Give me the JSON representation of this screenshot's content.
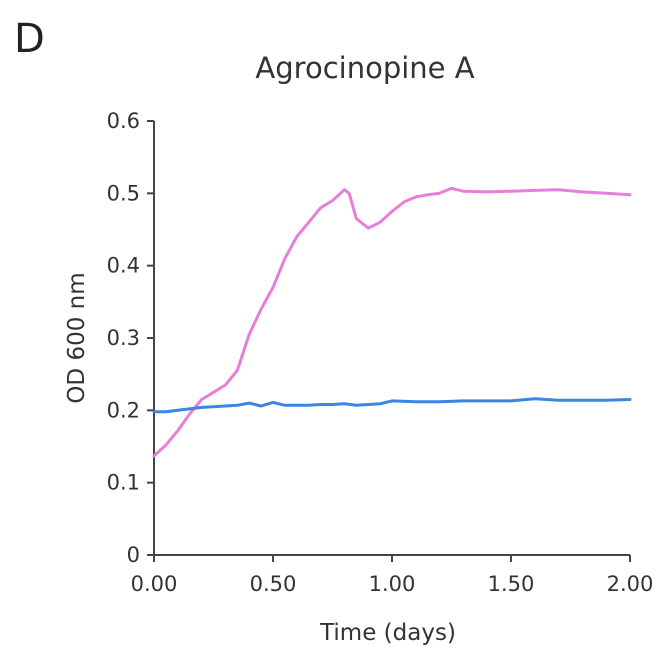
{
  "panel_label": "D",
  "chart_data": {
    "type": "line",
    "title": "Agrocinopine A",
    "xlabel": "Time (days)",
    "ylabel": "OD 600 nm",
    "xlim": [
      0,
      2
    ],
    "ylim": [
      0,
      0.6
    ],
    "x_ticks": [
      "0.00",
      "0.50",
      "1.00",
      "1.50",
      "2.00"
    ],
    "y_ticks": [
      "0",
      "0.1",
      "0.2",
      "0.3",
      "0.4",
      "0.5",
      "0.6"
    ],
    "grid": false,
    "legend": "none",
    "series": [
      {
        "color": "#e57fd9",
        "x": [
          0.0,
          0.05,
          0.1,
          0.15,
          0.2,
          0.25,
          0.3,
          0.35,
          0.4,
          0.45,
          0.5,
          0.55,
          0.6,
          0.65,
          0.7,
          0.75,
          0.8,
          0.82,
          0.85,
          0.9,
          0.95,
          1.0,
          1.05,
          1.1,
          1.15,
          1.2,
          1.25,
          1.3,
          1.4,
          1.5,
          1.6,
          1.7,
          1.8,
          1.9,
          2.0
        ],
        "y": [
          0.137,
          0.152,
          0.172,
          0.195,
          0.215,
          0.225,
          0.235,
          0.255,
          0.305,
          0.34,
          0.37,
          0.41,
          0.44,
          0.46,
          0.48,
          0.49,
          0.505,
          0.5,
          0.465,
          0.452,
          0.46,
          0.475,
          0.488,
          0.495,
          0.498,
          0.5,
          0.507,
          0.503,
          0.502,
          0.503,
          0.504,
          0.505,
          0.502,
          0.5,
          0.498
        ]
      },
      {
        "color": "#3a86e0",
        "x": [
          0.0,
          0.05,
          0.1,
          0.15,
          0.2,
          0.25,
          0.3,
          0.35,
          0.4,
          0.45,
          0.5,
          0.55,
          0.6,
          0.65,
          0.7,
          0.75,
          0.8,
          0.85,
          0.9,
          0.95,
          1.0,
          1.1,
          1.2,
          1.3,
          1.4,
          1.5,
          1.6,
          1.7,
          1.8,
          1.9,
          2.0
        ],
        "y": [
          0.198,
          0.198,
          0.2,
          0.202,
          0.204,
          0.205,
          0.206,
          0.207,
          0.21,
          0.206,
          0.211,
          0.207,
          0.207,
          0.207,
          0.208,
          0.208,
          0.209,
          0.207,
          0.208,
          0.209,
          0.213,
          0.212,
          0.212,
          0.213,
          0.213,
          0.213,
          0.216,
          0.214,
          0.214,
          0.214,
          0.215
        ]
      }
    ]
  }
}
